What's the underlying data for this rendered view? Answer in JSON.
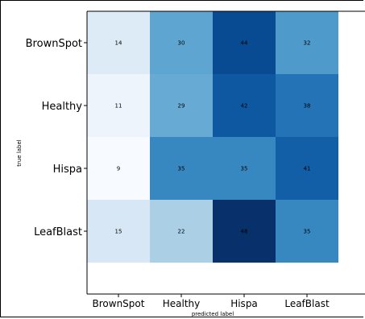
{
  "chart_data": {
    "type": "heatmap",
    "title": "",
    "xlabel": "predicted label",
    "ylabel": "true label",
    "x_categories": [
      "BrownSpot",
      "Healthy",
      "Hispa",
      "LeafBlast"
    ],
    "y_categories": [
      "BrownSpot",
      "Healthy",
      "Hispa",
      "LeafBlast"
    ],
    "values": [
      [
        14,
        30,
        44,
        32
      ],
      [
        11,
        29,
        42,
        38
      ],
      [
        9,
        35,
        35,
        41
      ],
      [
        15,
        22,
        48,
        35
      ]
    ],
    "colormap": "Blues",
    "vmin": 9,
    "vmax": 48
  }
}
